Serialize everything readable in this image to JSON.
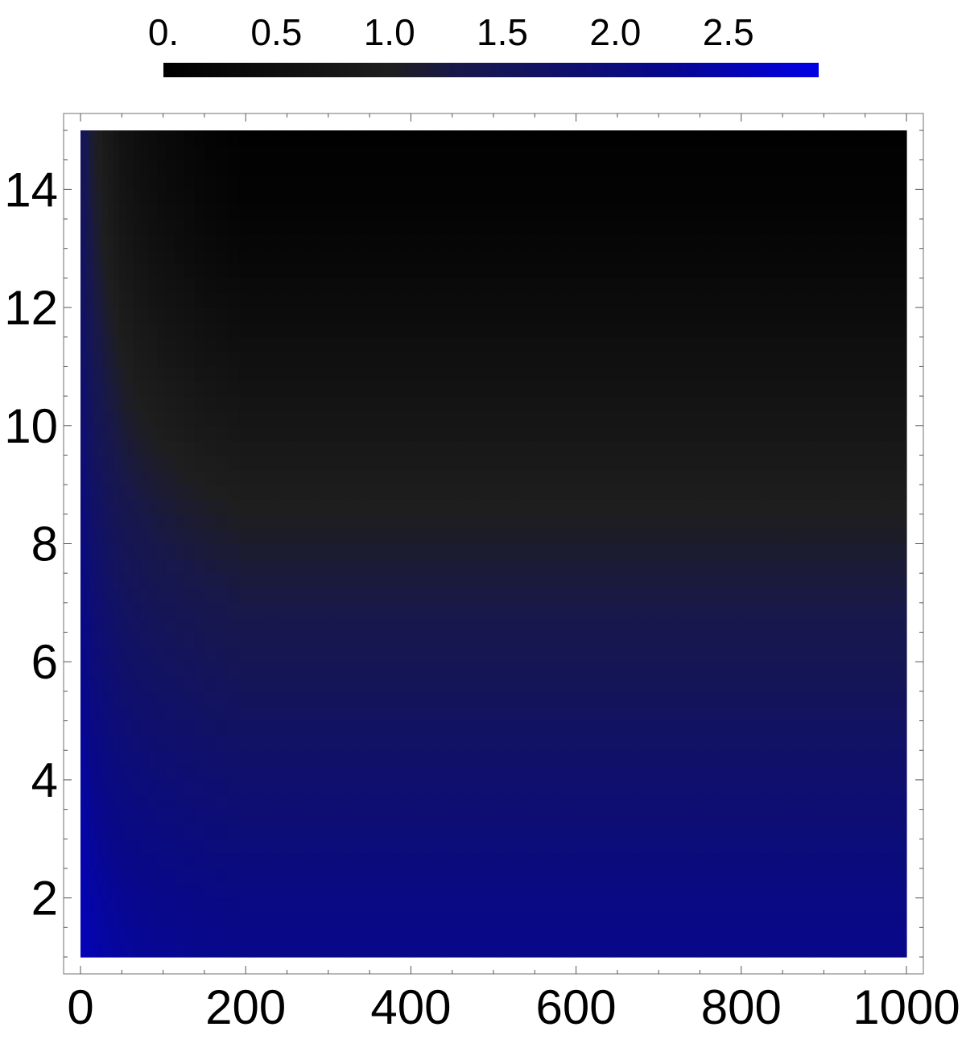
{
  "chart_data": {
    "type": "heatmap",
    "title": "",
    "xlabel": "",
    "ylabel": "",
    "xlim": [
      0,
      1000
    ],
    "ylim": [
      1,
      15
    ],
    "x_ticks": [
      0,
      200,
      400,
      600,
      800,
      1000
    ],
    "x_tick_labels": [
      "0",
      "200",
      "400",
      "600",
      "800",
      "1000"
    ],
    "y_ticks": [
      2,
      4,
      6,
      8,
      10,
      12,
      14
    ],
    "y_tick_labels": [
      "2",
      "4",
      "6",
      "8",
      "10",
      "12",
      "14"
    ],
    "colorbar": {
      "position": "top",
      "range": [
        0,
        2.9
      ],
      "ticks": [
        0,
        0.5,
        1.0,
        1.5,
        2.0,
        2.5
      ],
      "tick_labels": [
        "0.",
        "0.5",
        "1.0",
        "1.5",
        "2.0",
        "2.5"
      ],
      "colormap_stops": [
        {
          "value": 0.0,
          "color": "#000000"
        },
        {
          "value": 1.0,
          "color": "#1e1e1e"
        },
        {
          "value": 1.3,
          "color": "#18184a"
        },
        {
          "value": 2.2,
          "color": "#08088a"
        },
        {
          "value": 2.9,
          "color": "#0000e6"
        }
      ]
    },
    "y_profile": {
      "y": [
        1,
        2,
        3,
        4,
        5,
        6,
        7,
        8,
        9,
        10,
        11,
        12,
        13,
        14,
        15
      ],
      "value": [
        2.2,
        2.1,
        1.95,
        1.8,
        1.62,
        1.45,
        1.28,
        1.1,
        0.92,
        0.72,
        0.55,
        0.38,
        0.22,
        0.1,
        0.02
      ]
    },
    "x_profile": {
      "x": [
        0,
        5,
        15,
        30,
        50,
        70,
        100,
        150,
        200,
        1000
      ],
      "boost": [
        1.6,
        1.4,
        1.1,
        0.85,
        0.6,
        0.45,
        0.3,
        0.12,
        0.0,
        0.0
      ]
    },
    "grid": false
  }
}
